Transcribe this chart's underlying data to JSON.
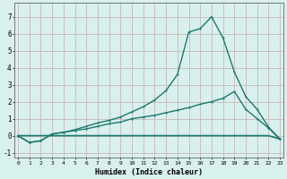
{
  "xlabel": "Humidex (Indice chaleur)",
  "bg_color": "#d8f0ee",
  "grid_color": "#c8b8b8",
  "line_color": "#1a7a6e",
  "x": [
    0,
    1,
    2,
    3,
    4,
    5,
    6,
    7,
    8,
    9,
    10,
    11,
    12,
    13,
    14,
    15,
    16,
    17,
    18,
    19,
    20,
    21,
    22,
    23
  ],
  "y_flat": [
    0.0,
    0.0,
    0.0,
    0.0,
    0.0,
    0.0,
    0.0,
    0.0,
    0.0,
    0.0,
    0.0,
    0.0,
    0.0,
    0.0,
    0.0,
    0.0,
    0.0,
    0.0,
    0.0,
    0.0,
    0.0,
    0.0,
    0.0,
    -0.2
  ],
  "y_mid": [
    0.0,
    -0.4,
    -0.3,
    0.1,
    0.2,
    0.3,
    0.4,
    0.55,
    0.7,
    0.8,
    1.0,
    1.1,
    1.2,
    1.35,
    1.5,
    1.65,
    1.85,
    2.0,
    2.2,
    2.6,
    1.55,
    1.0,
    0.45,
    -0.2
  ],
  "y_top": [
    0.0,
    -0.4,
    -0.3,
    0.1,
    0.2,
    0.35,
    0.55,
    0.75,
    0.9,
    1.1,
    1.4,
    1.7,
    2.1,
    2.65,
    3.6,
    6.1,
    6.3,
    7.0,
    5.75,
    3.75,
    2.3,
    1.55,
    0.5,
    -0.2
  ],
  "ylim": [
    -1.3,
    7.8
  ],
  "xlim": [
    -0.3,
    23.3
  ],
  "yticks": [
    -1,
    0,
    1,
    2,
    3,
    4,
    5,
    6,
    7
  ],
  "xticks": [
    0,
    1,
    2,
    3,
    4,
    5,
    6,
    7,
    8,
    9,
    10,
    11,
    12,
    13,
    14,
    15,
    16,
    17,
    18,
    19,
    20,
    21,
    22,
    23
  ]
}
